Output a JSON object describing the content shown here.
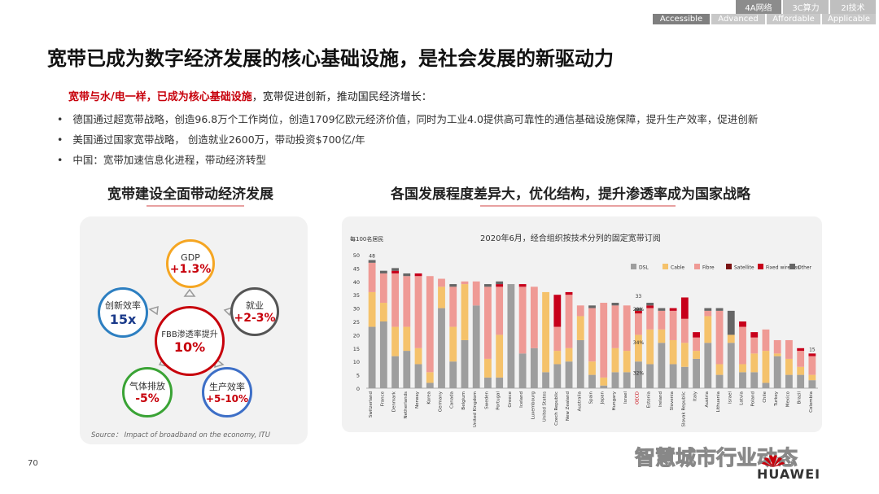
{
  "nav": {
    "top_tabs": [
      "4A网络",
      "3C算力",
      "2I技术"
    ],
    "bottom_tabs": [
      "Accessible",
      "Advanced",
      "Affordable",
      "Applicable"
    ]
  },
  "title": "宽带已成为数字经济发展的核心基础设施，是社会发展的新驱动力",
  "intro": {
    "red": "宽带与水/电一样，已成为核心基础设施",
    "rest": "，宽带促进创新，推动国民经济增长："
  },
  "bullets": [
    "德国通过超宽带战略，创造96.8万个工作岗位，创造1709亿欧元经济价值，同时为工业4.0提供高可靠性的通信基础设施保障，提升生产效率，促进创新",
    "美国通过国家宽带战略， 创造就业2600万，带动投资$700亿/年",
    "中国：宽带加速信息化进程，带动经济转型"
  ],
  "left": {
    "heading": "宽带建设全面带动经济发展",
    "center": {
      "label": "FBB渗透率提升",
      "value": "10%"
    },
    "nodes": [
      {
        "label": "GDP",
        "value": "+1.3%",
        "color": "#f5a623"
      },
      {
        "label": "就业",
        "value": "+2-3%",
        "color": "#555555"
      },
      {
        "label": "生产效率",
        "value": "+5-10%",
        "color": "#3d6fc7"
      },
      {
        "label": "气体排放",
        "value": "-5%",
        "color": "#3aa335"
      },
      {
        "label": "创新效率",
        "value": "15x",
        "color": "#2d7fc1"
      }
    ],
    "source": "Source：  Impact of broadband on the economy, ITU"
  },
  "right": {
    "heading": "各国发展程度差异大，优化结构，提升渗透率成为国家战略"
  },
  "chart_data": {
    "type": "bar",
    "stacked": true,
    "title": "2020年6月，经合组织按技术分列的固定宽带订阅",
    "ylabel": "每100名居民",
    "ylim": [
      0,
      50
    ],
    "yticks": [
      0,
      5,
      10,
      15,
      20,
      25,
      30,
      35,
      40,
      45,
      50
    ],
    "categories": [
      "Switzerland",
      "France",
      "Denmark",
      "Netherlands",
      "Norway",
      "Korea",
      "Germany",
      "Canada",
      "Belgium",
      "United Kingdom",
      "Sweden",
      "Portugal",
      "Greece",
      "Iceland",
      "Luxembourg",
      "United States",
      "Czech Republic",
      "New Zealand",
      "Australia",
      "Spain",
      "Japan",
      "Hungary",
      "Israel",
      "OECD",
      "Estonia",
      "Ireland",
      "Slovenia",
      "Slovak Republic",
      "Italy",
      "Austria",
      "Lithuania",
      "Israel",
      "Latvia",
      "Poland",
      "Chile",
      "Turkey",
      "Mexico",
      "Brazil",
      "Colombia"
    ],
    "series": [
      {
        "name": "DSL",
        "color": "#9e9e9e",
        "values": [
          23,
          25,
          12,
          14,
          9,
          2,
          30,
          10,
          18,
          31,
          4,
          4,
          39,
          13,
          15,
          6,
          9,
          10,
          18,
          5,
          1,
          6,
          6,
          10,
          9,
          17,
          9,
          8,
          11,
          17,
          5,
          17,
          6,
          6,
          2,
          12,
          5,
          5,
          3
        ]
      },
      {
        "name": "Cable",
        "color": "#f5c26b",
        "values": [
          13,
          7,
          11,
          9,
          6,
          4,
          8,
          13,
          21,
          0,
          7,
          16,
          0,
          0,
          0,
          30,
          5,
          5,
          9,
          5,
          3,
          9,
          8,
          10,
          13,
          5,
          9,
          9,
          3,
          10,
          4,
          3,
          3,
          7,
          12,
          1,
          6,
          3,
          2
        ]
      },
      {
        "name": "Fibre",
        "color": "#ef9a95",
        "values": [
          11,
          11,
          20,
          19,
          27,
          36,
          3,
          15,
          1,
          9,
          27,
          18,
          0,
          25,
          23,
          0,
          9,
          20,
          4,
          20,
          28,
          16,
          17,
          8,
          8,
          7,
          11,
          9,
          5,
          2,
          20,
          0,
          14,
          6,
          8,
          5,
          7,
          6,
          7
        ]
      },
      {
        "name": "Satellite",
        "color": "#7b1414",
        "values": [
          0,
          0,
          0,
          0,
          0,
          0,
          0,
          0,
          0,
          0,
          0,
          0,
          0,
          0,
          0,
          0,
          0,
          0,
          0,
          0,
          0,
          0,
          0,
          0,
          0,
          0,
          0,
          0,
          0,
          0,
          0,
          0,
          0,
          0,
          0,
          0,
          0,
          0,
          0
        ]
      },
      {
        "name": "Fixed wireless",
        "color": "#c7001b",
        "values": [
          0,
          0,
          1,
          0,
          1,
          0,
          0,
          0,
          0,
          0,
          0,
          1,
          0,
          1,
          0,
          0,
          12,
          1,
          0,
          0,
          0,
          0,
          0,
          1,
          1,
          0,
          1,
          8,
          2,
          0,
          0,
          0,
          2,
          2,
          0,
          0,
          0,
          1,
          1
        ]
      },
      {
        "name": "Other",
        "color": "#666666",
        "values": [
          1,
          1,
          1,
          1,
          0,
          0,
          0,
          1,
          0,
          0,
          1,
          1,
          0,
          0,
          0,
          0,
          0,
          0,
          0,
          1,
          0,
          1,
          0,
          1,
          1,
          1,
          0,
          0,
          0,
          1,
          1,
          9,
          0,
          0,
          0,
          0,
          0,
          0,
          0
        ]
      }
    ],
    "annotations": [
      "48",
      "33",
      "29%",
      "34%",
      "32%",
      "15"
    ]
  },
  "page_number": "70",
  "watermark": "智慧城市行业动态",
  "brand": "HUAWEI"
}
